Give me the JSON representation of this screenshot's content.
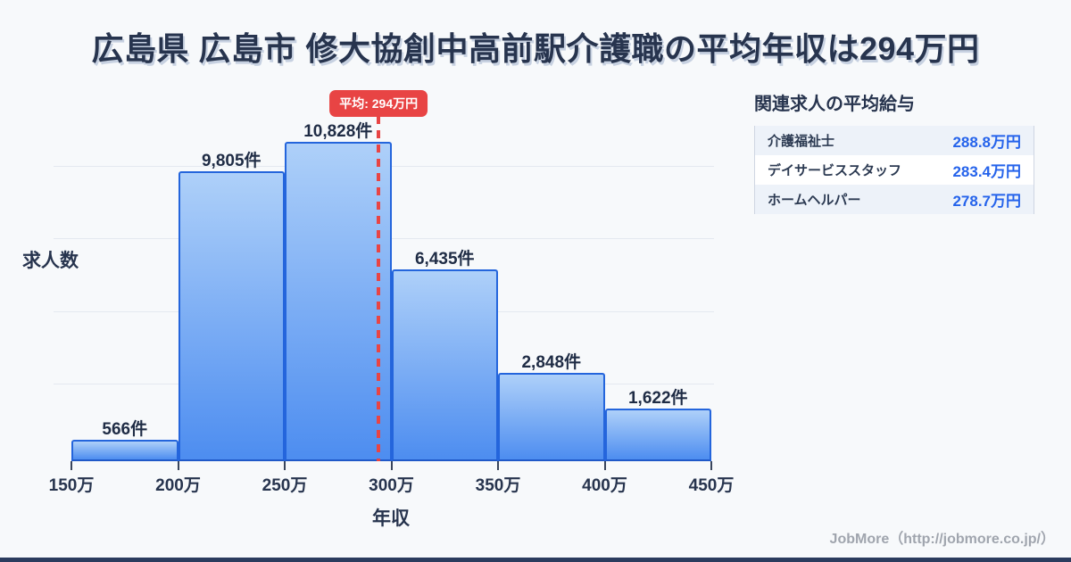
{
  "title": "広島県 広島市 修大協創中高前駅介護職の平均年収は294万円",
  "chart_data": {
    "type": "bar",
    "title": "広島県 広島市 修大協創中高前駅介護職の平均年収は294万円",
    "xlabel": "年収",
    "ylabel": "求人数",
    "x_tick_labels": [
      "150万",
      "200万",
      "250万",
      "300万",
      "350万",
      "400万",
      "450万"
    ],
    "x_axis_min": 150,
    "x_axis_max": 450,
    "values": [
      566,
      9805,
      10828,
      6435,
      2848,
      1622
    ],
    "bar_labels": [
      "566件",
      "9,805件",
      "10,828件",
      "6,435件",
      "2,848件",
      "1,622件"
    ],
    "ylim": [
      0,
      11000
    ],
    "gridline_values": [
      2500,
      5000,
      7500,
      10000
    ],
    "grid": "horizontal",
    "average_line": {
      "value": 294,
      "badge_label": "平均: 294万円"
    },
    "colors": {
      "bar_fill_top": "#aed0f9",
      "bar_fill_bottom": "#4d8df0",
      "bar_border": "#2465dc",
      "average_line": "#e84444"
    }
  },
  "side_panel": {
    "heading": "関連求人の平均給与",
    "salary_table": {
      "rows": [
        {
          "label": "介護福祉士",
          "value": "288.8万円"
        },
        {
          "label": "デイサービススタッフ",
          "value": "283.4万円"
        },
        {
          "label": "ホームヘルパー",
          "value": "278.7万円"
        }
      ]
    }
  },
  "footer": {
    "credit": "JobMore（http://jobmore.co.jp/）"
  },
  "theme": {
    "accent_navy": "#27344e",
    "value_blue": "#2563eb",
    "background": "#f7f9fb",
    "average_red": "#e84444",
    "bottom_bar": "#2b3c5e"
  }
}
